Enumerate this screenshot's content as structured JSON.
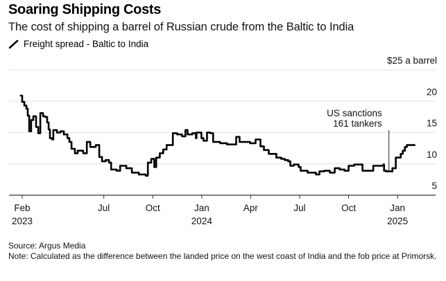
{
  "header": {
    "title": "Soaring Shipping Costs",
    "subtitle": "The cost of shipping a barrel of Russian crude from the Baltic to India",
    "legend_icon": "pen-icon",
    "legend_label": "Freight spread - Baltic to India"
  },
  "footer": {
    "source": "Source: Argus Media",
    "note": "Note: Calculated as the difference between the landed price on the west coast of India and the fob price at Primorsk."
  },
  "colors": {
    "line": "#000000",
    "grid": "#e0e0e0",
    "axis": "#333333"
  },
  "chart_data": {
    "type": "line",
    "title": "Soaring Shipping Costs",
    "subtitle": "The cost of shipping a barrel of Russian crude from the Baltic to India",
    "xlabel": "",
    "ylabel": "$ a barrel",
    "y_unit_label": "$25 a barrel",
    "ylim": [
      5,
      25
    ],
    "y_ticks": [
      {
        "value": 25,
        "label": "$25 a barrel"
      },
      {
        "value": 20,
        "label": "20"
      },
      {
        "value": 15,
        "label": "15"
      },
      {
        "value": 10,
        "label": "10"
      },
      {
        "value": 5,
        "label": "5"
      }
    ],
    "x_unit": "months since Feb 2023",
    "xlim": [
      -0.8,
      25.4
    ],
    "x_ticks": [
      {
        "month": 0,
        "label": "Feb",
        "year": "2023"
      },
      {
        "month": 5,
        "label": "Jul",
        "year": ""
      },
      {
        "month": 8,
        "label": "Oct",
        "year": ""
      },
      {
        "month": 11,
        "label": "Jan",
        "year": "2024"
      },
      {
        "month": 14,
        "label": "Apr",
        "year": ""
      },
      {
        "month": 17,
        "label": "Jul",
        "year": ""
      },
      {
        "month": 20,
        "label": "Oct",
        "year": ""
      },
      {
        "month": 23,
        "label": "Jan",
        "year": "2025"
      }
    ],
    "grid": true,
    "legend": "top-left",
    "annotation": {
      "text_lines": [
        "US sanctions",
        "161 tankers"
      ],
      "month": 22.47
    },
    "series": [
      {
        "name": "Freight spread - Baltic to India",
        "x": [
          -0.09,
          0,
          0.13,
          0.26,
          0.34,
          0.43,
          0.55,
          0.68,
          0.85,
          0.98,
          1.11,
          1.28,
          1.4,
          1.53,
          1.62,
          1.7,
          1.83,
          1.91,
          2.13,
          2.34,
          2.55,
          2.77,
          2.89,
          3.02,
          3.23,
          3.4,
          3.74,
          3.96,
          4.17,
          4.51,
          4.72,
          4.89,
          5.11,
          5.32,
          5.45,
          5.79,
          6.0,
          6.38,
          6.64,
          6.72,
          7.15,
          7.57,
          7.7,
          7.91,
          8.09,
          8.21,
          8.43,
          8.64,
          8.85,
          9.15,
          9.23,
          9.49,
          9.79,
          10.0,
          10.13,
          10.43,
          10.64,
          10.68,
          10.98,
          11.11,
          11.32,
          11.53,
          11.7,
          12.13,
          12.55,
          12.94,
          13.11,
          13.32,
          13.96,
          14.3,
          14.6,
          14.81,
          15.11,
          15.45,
          15.57,
          15.87,
          16.09,
          16.3,
          16.43,
          16.64,
          16.94,
          17.06,
          17.49,
          18.0,
          18.21,
          18.51,
          18.85,
          19.15,
          19.45,
          19.75,
          20.0,
          20.34,
          20.64,
          20.85,
          21.09,
          21.51,
          21.72,
          22.13,
          22.17,
          22.3,
          22.3,
          22.68,
          22.89,
          23.19,
          23.32,
          23.45,
          23.57,
          23.68,
          23.89,
          24.04
        ],
        "y": [
          20.9,
          19.9,
          19.3,
          18.8,
          17.7,
          15.2,
          17.0,
          17.6,
          15.9,
          14.9,
          18.1,
          17.6,
          17.5,
          16.6,
          15.5,
          14.1,
          13.9,
          15.4,
          15.0,
          15.2,
          14.7,
          14.1,
          13.5,
          12.4,
          11.7,
          12.1,
          11.7,
          13.5,
          12.7,
          13.0,
          11.1,
          10.4,
          10.6,
          10.2,
          9.1,
          8.9,
          9.7,
          9.3,
          9.3,
          8.6,
          8.3,
          8.1,
          10.2,
          10.8,
          9.5,
          11.0,
          11.7,
          12.3,
          13.0,
          13.0,
          14.9,
          14.7,
          14.4,
          15.4,
          14.7,
          14.9,
          14.1,
          15.0,
          14.1,
          13.7,
          15.0,
          14.9,
          13.5,
          13.3,
          13.1,
          13.1,
          14.3,
          13.5,
          13.3,
          13.9,
          12.8,
          12.2,
          11.6,
          11.6,
          11.0,
          10.8,
          10.6,
          10.4,
          9.7,
          9.9,
          9.5,
          8.9,
          8.6,
          8.3,
          8.8,
          8.9,
          8.6,
          9.3,
          9.1,
          8.9,
          9.7,
          9.9,
          9.9,
          8.9,
          8.9,
          9.7,
          9.7,
          9.9,
          8.9,
          8.8,
          8.8,
          9.3,
          11.0,
          11.6,
          12.1,
          12.7,
          13.0,
          13.0,
          13.0,
          13.0
        ]
      }
    ]
  }
}
